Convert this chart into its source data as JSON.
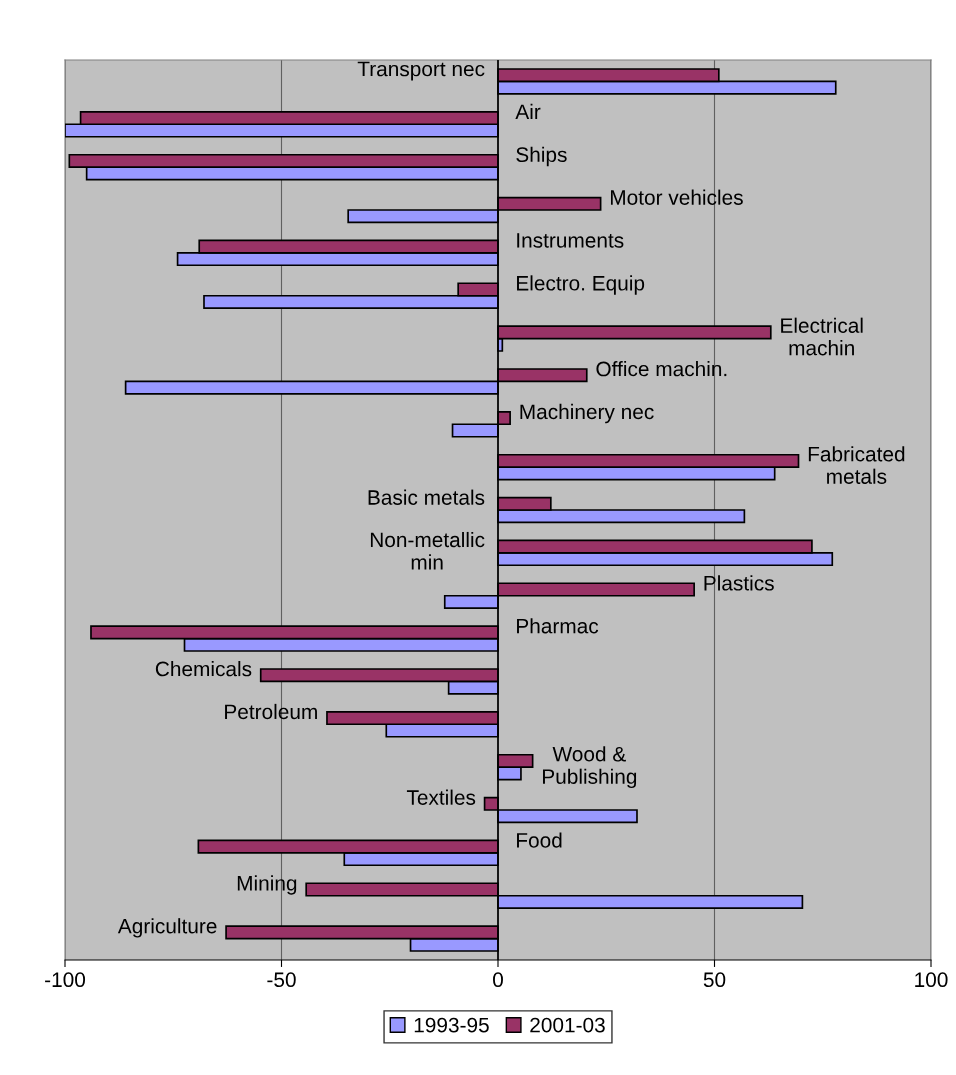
{
  "chart_data": {
    "type": "bar",
    "orientation": "horizontal",
    "categories": [
      "Transport nec",
      "Air",
      "Ships",
      "Motor vehicles",
      "Instruments",
      "Electro. Equip",
      "Electrical\nmachin",
      "Office machin.",
      "Machinery nec",
      "Fabricated\nmetals",
      "Basic metals",
      "Non-metallic\nmin",
      "Plastics",
      "Pharmac",
      "Chemicals",
      "Petroleum",
      "Wood &\nPublishing",
      "Textiles",
      "Food",
      "Mining",
      "Agriculture"
    ],
    "series": [
      {
        "name": "1993-95",
        "color": "#9999ff",
        "values": [
          78,
          -100,
          -95,
          -34.6,
          -74,
          -67.9,
          1,
          -86,
          -10.5,
          63.9,
          56.9,
          77.2,
          -12.3,
          -72.4,
          -11.4,
          -25.8,
          5.3,
          32.1,
          -35.5,
          70.3,
          -20.2
        ]
      },
      {
        "name": "2001-03",
        "color": "#993366",
        "values": [
          51,
          -96.4,
          -99,
          23.7,
          -69,
          -9.2,
          63,
          20.5,
          2.8,
          69.4,
          12.2,
          72.5,
          45.3,
          -94,
          -54.8,
          -39.5,
          8,
          -3.1,
          -69.2,
          -44.3,
          -62.8
        ]
      }
    ],
    "xlim": [
      -100,
      100
    ],
    "xticks": [
      -100,
      -50,
      0,
      50,
      100
    ],
    "grid": "x",
    "legend": "bottom",
    "tick_labels": "x"
  }
}
